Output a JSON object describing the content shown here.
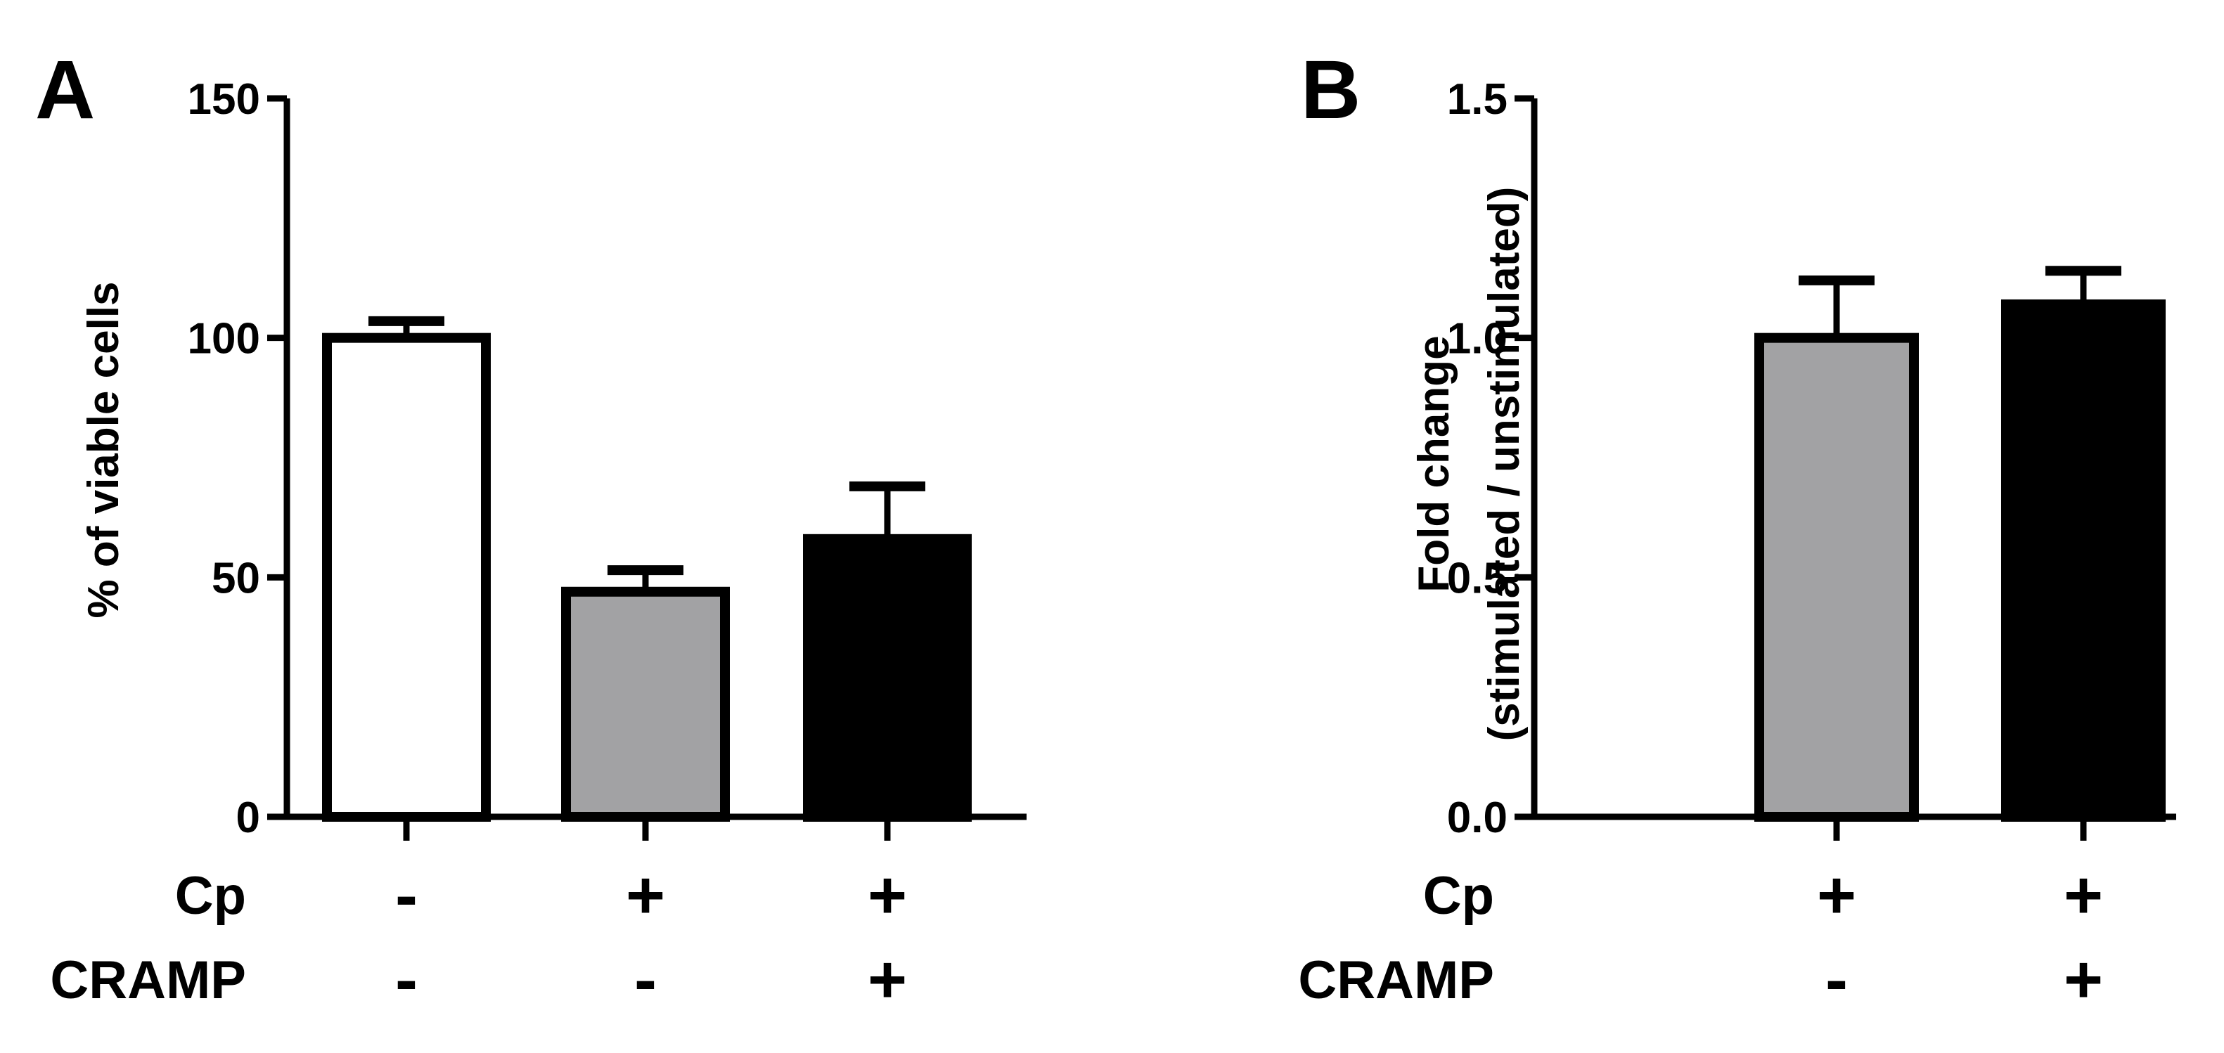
{
  "chart_data": [
    {
      "panel": "A",
      "type": "bar",
      "categories": [
        "1",
        "2",
        "3"
      ],
      "values": [
        100,
        47,
        58
      ],
      "error_upper": [
        3.5,
        4.5,
        11
      ],
      "bar_colors": [
        "#ffffff",
        "#a2a2a4",
        "#000000"
      ],
      "ylabel": "% of viable cells",
      "ylim": [
        0,
        150
      ],
      "yticks": [
        "0",
        "50",
        "100",
        "150"
      ],
      "treatment_rows": [
        {
          "label": "Cp",
          "marks": [
            "-",
            "+",
            "+"
          ]
        },
        {
          "label": "CRAMP",
          "marks": [
            "-",
            "-",
            "+"
          ]
        }
      ],
      "grid": false,
      "legend": "none"
    },
    {
      "panel": "B",
      "type": "bar",
      "categories": [
        "1",
        "2"
      ],
      "values": [
        1.0,
        1.07
      ],
      "error_upper": [
        0.12,
        0.07
      ],
      "bar_colors": [
        "#a2a2a4",
        "#000000"
      ],
      "ylabel_lines": [
        "Fold change",
        "(stimulated / unstimulated)"
      ],
      "ylim": [
        0,
        1.5
      ],
      "yticks": [
        "0.0",
        "0.5",
        "1.0",
        "1.5"
      ],
      "treatment_rows": [
        {
          "label": "Cp",
          "marks": [
            "+",
            "+"
          ]
        },
        {
          "label": "CRAMP",
          "marks": [
            "-",
            "+"
          ]
        }
      ],
      "grid": false,
      "legend": "none"
    }
  ]
}
